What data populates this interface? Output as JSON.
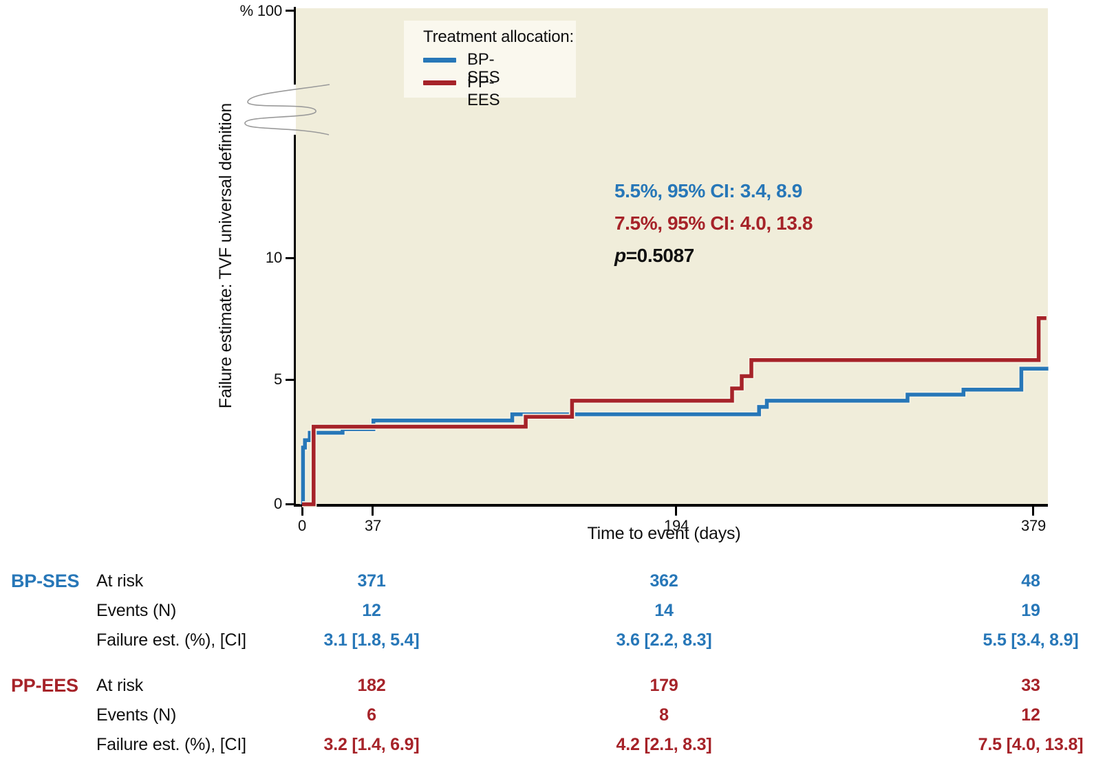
{
  "colors": {
    "bp_ses": "#2777b8",
    "pp_ees": "#a62329",
    "plot_background": "#f0edda",
    "legend_background": "#faf8ee",
    "axis": "#000000"
  },
  "legend": {
    "title": "Treatment allocation:",
    "items": [
      {
        "label": "BP-SES",
        "color": "#2777b8"
      },
      {
        "label": "PP-EES",
        "color": "#a62329"
      }
    ]
  },
  "annotation": {
    "line_bp_ses": "5.5%, 95% CI: 3.4, 8.9",
    "line_pp_ees": "7.5%, 95% CI: 4.0, 13.8",
    "p_label": "p",
    "p_value": "=0.5087"
  },
  "y_axis": {
    "top_label": "% 100",
    "tick_labels": [
      "10",
      "5",
      "0"
    ],
    "title": "Failure estimate: TVF universal definition"
  },
  "x_axis": {
    "tick_labels": [
      "0",
      "37",
      "194",
      "379"
    ],
    "title": "Time to event (days)"
  },
  "risk_table": {
    "groups": [
      {
        "name": "BP-SES",
        "rows": [
          {
            "label": "At risk",
            "values": [
              "371",
              "362",
              "48"
            ]
          },
          {
            "label": "Events (N)",
            "values": [
              "12",
              "14",
              "19"
            ]
          },
          {
            "label": "Failure est. (%), [CI]",
            "values": [
              "3.1 [1.8, 5.4]",
              "3.6 [2.2, 8.3]",
              "5.5 [3.4, 8.9]"
            ]
          }
        ]
      },
      {
        "name": "PP-EES",
        "rows": [
          {
            "label": "At risk",
            "values": [
              "182",
              "179",
              "33"
            ]
          },
          {
            "label": "Events (N)",
            "values": [
              "6",
              "8",
              "12"
            ]
          },
          {
            "label": "Failure est. (%), [CI]",
            "values": [
              "3.2 [1.4, 6.9]",
              "4.2 [2.1, 8.3]",
              "7.5 [4.0, 13.8]"
            ]
          }
        ]
      }
    ]
  },
  "chart_data": {
    "type": "line",
    "subtype": "kaplan-meier-failure-step",
    "title": "",
    "xlabel": "Time to event (days)",
    "ylabel": "Failure estimate: TVF universal definition",
    "x_ticks": [
      0,
      37,
      194,
      379
    ],
    "y_ticks": [
      0,
      5,
      10
    ],
    "y_axis_break": true,
    "y_axis_top_value": 100,
    "ylim": [
      0,
      100
    ],
    "xlim": [
      0,
      387
    ],
    "grid": false,
    "legend_position": "top-left-inside",
    "series": [
      {
        "name": "BP-SES",
        "color": "#2777b8",
        "end_day": 387,
        "steps": [
          [
            0,
            0
          ],
          [
            0.5,
            2.3
          ],
          [
            1.5,
            2.6
          ],
          [
            4,
            2.9
          ],
          [
            21,
            3.05
          ],
          [
            37,
            3.4
          ],
          [
            109,
            3.65
          ],
          [
            237,
            3.95
          ],
          [
            241,
            4.2
          ],
          [
            314,
            4.45
          ],
          [
            343,
            4.65
          ],
          [
            373,
            5.5
          ]
        ]
      },
      {
        "name": "PP-EES",
        "color": "#a62329",
        "end_day": 386,
        "steps": [
          [
            0,
            0
          ],
          [
            6,
            3.15
          ],
          [
            116,
            3.55
          ],
          [
            140,
            4.2
          ],
          [
            223,
            4.7
          ],
          [
            228,
            5.2
          ],
          [
            233,
            5.85
          ],
          [
            382,
            7.55
          ]
        ]
      }
    ]
  }
}
